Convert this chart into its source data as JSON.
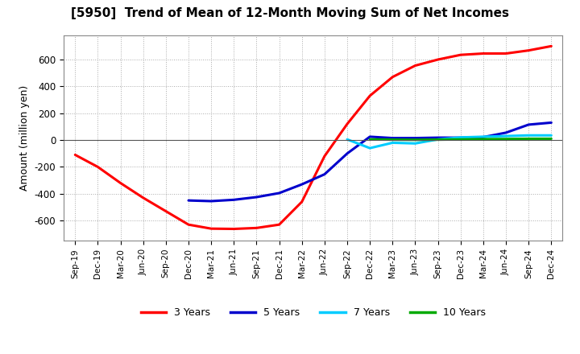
{
  "title": "[5950]  Trend of Mean of 12-Month Moving Sum of Net Incomes",
  "ylabel": "Amount (million yen)",
  "background_color": "#ffffff",
  "plot_bg_color": "#ffffff",
  "grid_color": "#aaaaaa",
  "ylim": [
    -750,
    780
  ],
  "yticks": [
    -600,
    -400,
    -200,
    0,
    200,
    400,
    600
  ],
  "series": {
    "3 Years": {
      "color": "#ff0000",
      "x": [
        "Sep-19",
        "Dec-19",
        "Mar-20",
        "Jun-20",
        "Sep-20",
        "Dec-20",
        "Mar-21",
        "Jun-21",
        "Sep-21",
        "Dec-21",
        "Mar-22",
        "Jun-22",
        "Sep-22",
        "Dec-22",
        "Mar-23",
        "Jun-23",
        "Sep-23",
        "Dec-23",
        "Mar-24",
        "Jun-24",
        "Sep-24",
        "Dec-24"
      ],
      "y": [
        -110,
        -200,
        -320,
        -430,
        -530,
        -630,
        -660,
        -662,
        -655,
        -630,
        -460,
        -120,
        120,
        330,
        470,
        555,
        600,
        635,
        645,
        645,
        668,
        700
      ]
    },
    "5 Years": {
      "color": "#0000cc",
      "x": [
        "Dec-20",
        "Mar-21",
        "Jun-21",
        "Sep-21",
        "Dec-21",
        "Mar-22",
        "Jun-22",
        "Sep-22",
        "Dec-22",
        "Mar-23",
        "Jun-23",
        "Sep-23",
        "Dec-23",
        "Mar-24",
        "Jun-24",
        "Sep-24",
        "Dec-24"
      ],
      "y": [
        -450,
        -455,
        -445,
        -425,
        -395,
        -330,
        -255,
        -100,
        25,
        15,
        15,
        18,
        18,
        22,
        55,
        115,
        130
      ]
    },
    "7 Years": {
      "color": "#00ccff",
      "x": [
        "Sep-22",
        "Dec-22",
        "Mar-23",
        "Jun-23",
        "Sep-23",
        "Dec-23",
        "Mar-24",
        "Jun-24",
        "Sep-24",
        "Dec-24"
      ],
      "y": [
        5,
        -60,
        -20,
        -25,
        5,
        20,
        25,
        30,
        35,
        35
      ]
    },
    "10 Years": {
      "color": "#00aa00",
      "x": [
        "Dec-22",
        "Mar-23",
        "Jun-23",
        "Sep-23",
        "Dec-23",
        "Mar-24",
        "Jun-24",
        "Sep-24",
        "Dec-24"
      ],
      "y": [
        5,
        3,
        2,
        3,
        5,
        7,
        8,
        10,
        10
      ]
    }
  },
  "xtick_labels": [
    "Sep-19",
    "Dec-19",
    "Mar-20",
    "Jun-20",
    "Sep-20",
    "Dec-20",
    "Mar-21",
    "Jun-21",
    "Sep-21",
    "Dec-21",
    "Mar-22",
    "Jun-22",
    "Sep-22",
    "Dec-22",
    "Mar-23",
    "Jun-23",
    "Sep-23",
    "Dec-23",
    "Mar-24",
    "Jun-24",
    "Sep-24",
    "Dec-24"
  ],
  "legend": {
    "3 Years": "#ff0000",
    "5 Years": "#0000cc",
    "7 Years": "#00ccff",
    "10 Years": "#00aa00"
  }
}
